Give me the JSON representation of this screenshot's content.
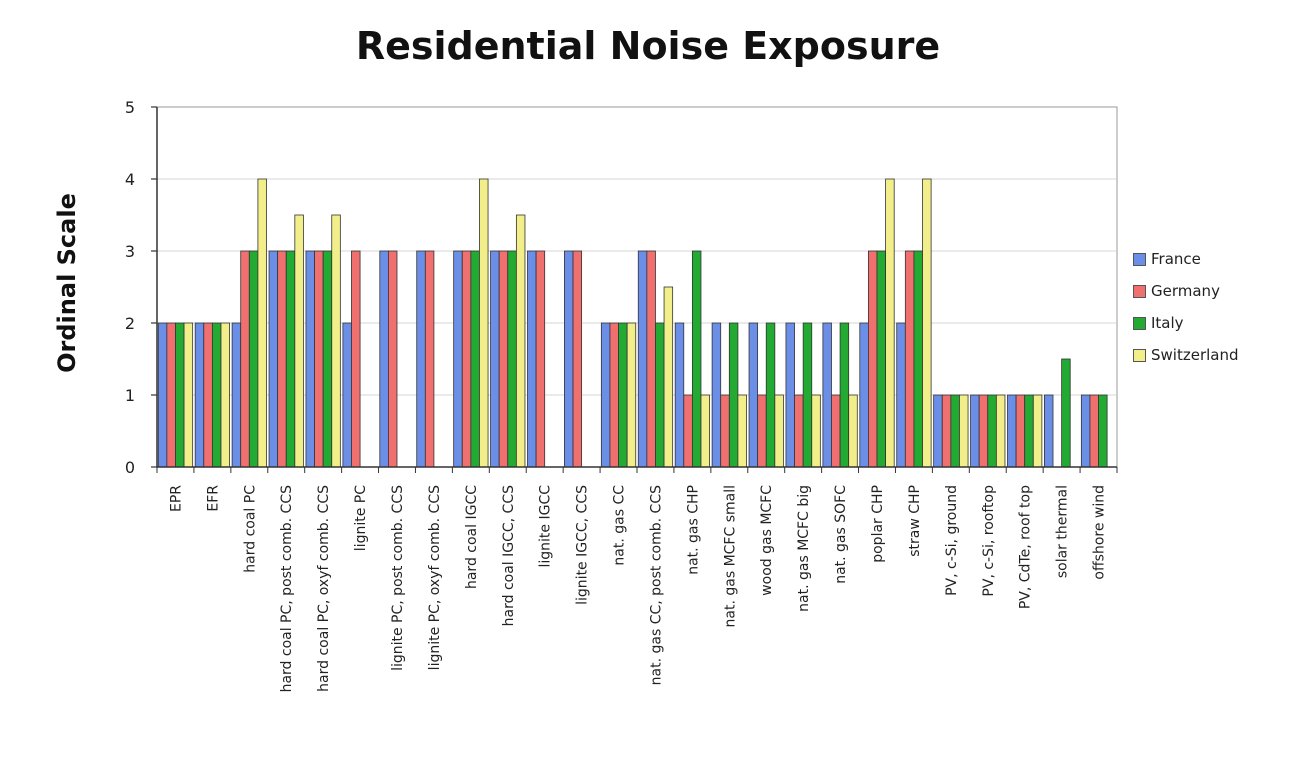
{
  "chart_data": {
    "type": "bar",
    "title": "Residential Noise Exposure",
    "ylabel": "Ordinal Scale",
    "xlabel": "",
    "ylim": [
      0,
      5
    ],
    "yticks": [
      "0",
      "1",
      "2",
      "3",
      "4",
      "5"
    ],
    "grid": true,
    "legend_position": "right",
    "categories": [
      "EPR",
      "EFR",
      "hard coal PC",
      "hard coal PC, post comb. CCS",
      "hard coal PC, oxyf comb. CCS",
      "lignite PC",
      "lignite PC, post comb. CCS",
      "lignite PC, oxyf comb. CCS",
      "hard coal IGCC",
      "hard coal IGCC, CCS",
      "lignite IGCC",
      "lignite IGCC, CCS",
      "nat. gas CC",
      "nat. gas CC, post comb. CCS",
      "nat. gas CHP",
      "nat. gas MCFC small",
      "wood gas MCFC",
      "nat. gas MCFC big",
      "nat. gas SOFC",
      "poplar CHP",
      "straw CHP",
      "PV, c-Si, ground",
      "PV, c-Si, rooftop",
      "PV, CdTe, roof top",
      "solar thermal",
      "offshore wind"
    ],
    "series": [
      {
        "name": "France",
        "color": "#6b8fe6",
        "values": [
          2,
          2,
          2,
          3,
          3,
          2,
          3,
          3,
          3,
          3,
          3,
          3,
          2,
          3,
          2,
          2,
          2,
          2,
          2,
          2,
          2,
          1,
          1,
          1,
          1,
          1
        ]
      },
      {
        "name": "Germany",
        "color": "#f07070",
        "values": [
          2,
          2,
          3,
          3,
          3,
          3,
          3,
          3,
          3,
          3,
          3,
          3,
          2,
          3,
          1,
          1,
          1,
          1,
          1,
          3,
          3,
          1,
          1,
          1,
          null,
          1
        ]
      },
      {
        "name": "Italy",
        "color": "#22aa33",
        "values": [
          2,
          2,
          3,
          3,
          3,
          null,
          null,
          null,
          3,
          3,
          null,
          null,
          2,
          2,
          3,
          2,
          2,
          2,
          2,
          3,
          3,
          1,
          1,
          1,
          1.5,
          1
        ]
      },
      {
        "name": "Switzerland",
        "color": "#f2ee8a",
        "values": [
          2,
          2,
          4,
          3.5,
          3.5,
          null,
          null,
          null,
          4,
          3.5,
          null,
          null,
          2,
          2.5,
          1,
          1,
          1,
          1,
          1,
          4,
          4,
          1,
          1,
          1,
          null,
          null
        ]
      }
    ]
  }
}
